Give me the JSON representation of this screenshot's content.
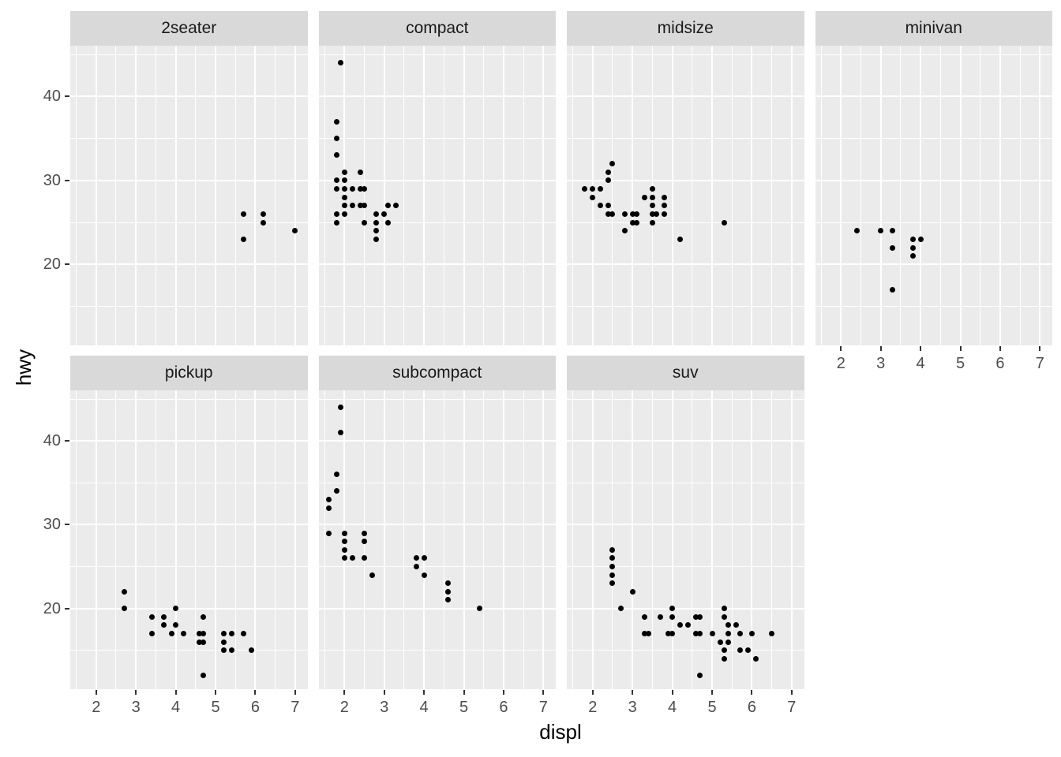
{
  "style": {
    "background": "#FFFFFF",
    "panel_bg": "#EBEBEB",
    "strip_bg": "#D9D9D9",
    "grid_color": "#FFFFFF",
    "point_color": "#000000",
    "tick_label_color": "#4D4D4D",
    "strip_text_color": "#1A1A1A",
    "axis_title_color": "#000000",
    "tick_mark_color": "#333333"
  },
  "chart_data": {
    "type": "scatter",
    "xlabel": "displ",
    "ylabel": "hwy",
    "facet_variable": "class",
    "legend": "none",
    "grid": "on",
    "x_range": [
      1.35,
      7.31
    ],
    "y_range": [
      10.4,
      46.1
    ],
    "x_major_ticks": [
      2,
      3,
      4,
      5,
      6,
      7
    ],
    "x_minor_gridlines": [
      1.5,
      2.5,
      3.5,
      4.5,
      5.5,
      6.5
    ],
    "y_major_ticks": [
      20,
      30,
      40
    ],
    "y_minor_gridlines": [
      15,
      25,
      35,
      45
    ],
    "x_tick_labels": [
      "2",
      "3",
      "4",
      "5",
      "6",
      "7"
    ],
    "y_tick_labels": [
      "20",
      "30",
      "40"
    ],
    "facets": [
      {
        "label": "2seater",
        "points": [
          [
            5.7,
            26
          ],
          [
            5.7,
            23
          ],
          [
            6.2,
            26
          ],
          [
            6.2,
            25
          ],
          [
            7.0,
            24
          ]
        ]
      },
      {
        "label": "compact",
        "points": [
          [
            1.9,
            44
          ],
          [
            1.8,
            37
          ],
          [
            1.8,
            35
          ],
          [
            1.8,
            33
          ],
          [
            2.0,
            31
          ],
          [
            2.4,
            31
          ],
          [
            1.8,
            30
          ],
          [
            2.0,
            30
          ],
          [
            1.8,
            29
          ],
          [
            2.0,
            29
          ],
          [
            2.2,
            29
          ],
          [
            2.4,
            29
          ],
          [
            2.5,
            29
          ],
          [
            2.0,
            28
          ],
          [
            2.0,
            27
          ],
          [
            2.2,
            27
          ],
          [
            2.4,
            27
          ],
          [
            2.5,
            27
          ],
          [
            3.1,
            27
          ],
          [
            3.3,
            27
          ],
          [
            1.8,
            26
          ],
          [
            2.0,
            26
          ],
          [
            2.8,
            26
          ],
          [
            3.0,
            26
          ],
          [
            1.8,
            25
          ],
          [
            2.5,
            25
          ],
          [
            2.8,
            25
          ],
          [
            3.1,
            25
          ],
          [
            2.8,
            24
          ],
          [
            2.8,
            23
          ]
        ]
      },
      {
        "label": "midsize",
        "points": [
          [
            2.5,
            32
          ],
          [
            2.4,
            31
          ],
          [
            2.4,
            30
          ],
          [
            1.8,
            29
          ],
          [
            2.0,
            29
          ],
          [
            2.2,
            29
          ],
          [
            3.5,
            29
          ],
          [
            2.0,
            28
          ],
          [
            3.3,
            28
          ],
          [
            3.5,
            28
          ],
          [
            3.8,
            28
          ],
          [
            2.2,
            27
          ],
          [
            2.4,
            27
          ],
          [
            3.5,
            27
          ],
          [
            3.8,
            27
          ],
          [
            2.4,
            26
          ],
          [
            2.5,
            26
          ],
          [
            2.8,
            26
          ],
          [
            3.0,
            26
          ],
          [
            3.1,
            26
          ],
          [
            3.5,
            26
          ],
          [
            3.6,
            26
          ],
          [
            3.8,
            26
          ],
          [
            3.0,
            25
          ],
          [
            3.1,
            25
          ],
          [
            3.5,
            25
          ],
          [
            5.3,
            25
          ],
          [
            2.8,
            24
          ],
          [
            4.2,
            23
          ]
        ]
      },
      {
        "label": "minivan",
        "points": [
          [
            2.4,
            24
          ],
          [
            3.0,
            24
          ],
          [
            3.3,
            24
          ],
          [
            3.3,
            22
          ],
          [
            3.3,
            17
          ],
          [
            3.8,
            23
          ],
          [
            3.8,
            22
          ],
          [
            3.8,
            21
          ],
          [
            4.0,
            23
          ]
        ]
      },
      {
        "label": "pickup",
        "points": [
          [
            2.7,
            22
          ],
          [
            2.7,
            20
          ],
          [
            3.4,
            19
          ],
          [
            3.7,
            19
          ],
          [
            3.7,
            18
          ],
          [
            4.0,
            20
          ],
          [
            4.0,
            18
          ],
          [
            3.4,
            17
          ],
          [
            3.9,
            17
          ],
          [
            4.2,
            17
          ],
          [
            4.7,
            19
          ],
          [
            4.6,
            17
          ],
          [
            4.7,
            17
          ],
          [
            4.6,
            16
          ],
          [
            4.7,
            16
          ],
          [
            5.2,
            17
          ],
          [
            5.4,
            17
          ],
          [
            5.7,
            17
          ],
          [
            5.2,
            16
          ],
          [
            5.2,
            15
          ],
          [
            5.4,
            15
          ],
          [
            5.9,
            15
          ],
          [
            4.7,
            12
          ]
        ]
      },
      {
        "label": "subcompact",
        "points": [
          [
            1.9,
            44
          ],
          [
            1.9,
            41
          ],
          [
            1.8,
            36
          ],
          [
            1.8,
            34
          ],
          [
            1.6,
            33
          ],
          [
            1.6,
            32
          ],
          [
            1.6,
            29
          ],
          [
            2.0,
            29
          ],
          [
            2.5,
            29
          ],
          [
            2.0,
            28
          ],
          [
            2.5,
            28
          ],
          [
            2.0,
            27
          ],
          [
            2.0,
            26
          ],
          [
            2.2,
            26
          ],
          [
            2.5,
            26
          ],
          [
            2.7,
            24
          ],
          [
            3.8,
            26
          ],
          [
            4.0,
            26
          ],
          [
            3.8,
            25
          ],
          [
            4.0,
            24
          ],
          [
            4.6,
            23
          ],
          [
            4.6,
            22
          ],
          [
            4.6,
            21
          ],
          [
            5.4,
            20
          ]
        ]
      },
      {
        "label": "suv",
        "points": [
          [
            2.5,
            27
          ],
          [
            2.5,
            26
          ],
          [
            2.5,
            25
          ],
          [
            2.5,
            24
          ],
          [
            2.5,
            23
          ],
          [
            3.0,
            22
          ],
          [
            2.7,
            20
          ],
          [
            4.0,
            20
          ],
          [
            5.3,
            20
          ],
          [
            3.3,
            19
          ],
          [
            3.7,
            19
          ],
          [
            4.0,
            19
          ],
          [
            4.6,
            19
          ],
          [
            4.7,
            19
          ],
          [
            5.3,
            19
          ],
          [
            4.2,
            18
          ],
          [
            4.4,
            18
          ],
          [
            5.4,
            18
          ],
          [
            5.6,
            18
          ],
          [
            3.3,
            17
          ],
          [
            3.4,
            17
          ],
          [
            3.9,
            17
          ],
          [
            4.0,
            17
          ],
          [
            4.6,
            17
          ],
          [
            4.7,
            17
          ],
          [
            5.0,
            17
          ],
          [
            5.4,
            17
          ],
          [
            5.7,
            17
          ],
          [
            6.0,
            17
          ],
          [
            6.5,
            17
          ],
          [
            5.2,
            16
          ],
          [
            5.4,
            16
          ],
          [
            5.3,
            15
          ],
          [
            5.7,
            15
          ],
          [
            5.9,
            15
          ],
          [
            5.3,
            14
          ],
          [
            6.1,
            14
          ],
          [
            4.7,
            12
          ]
        ]
      }
    ]
  }
}
